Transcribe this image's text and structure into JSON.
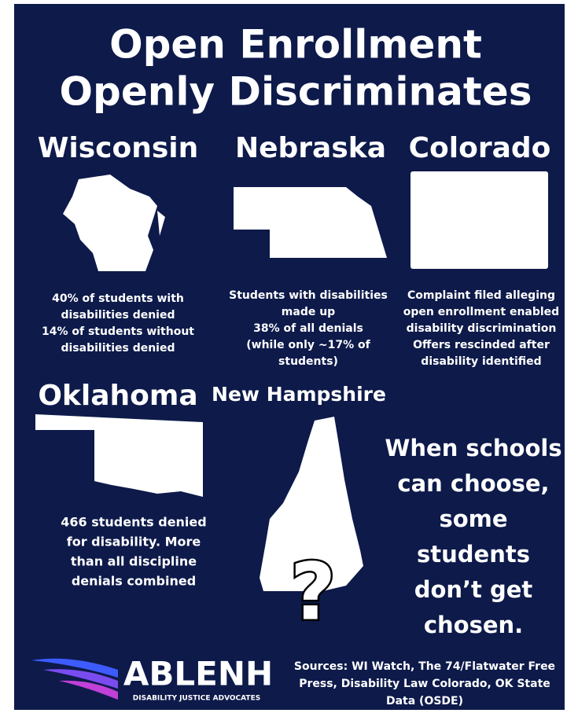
{
  "title": [
    "Open Enrollment",
    "Openly Discriminates"
  ],
  "states": [
    {
      "name": "Wisconsin",
      "text": [
        "40% of students with",
        "disabilities denied",
        "14% of students without",
        "disabilities denied"
      ]
    },
    {
      "name": "Nebraska",
      "text": [
        "Students with disabilities",
        "made up",
        "38% of all denials",
        "(while only ~17% of",
        "students)"
      ]
    },
    {
      "name": "Colorado",
      "text": [
        "Complaint filed alleging",
        "open enrollment enabled",
        "disability discrimination",
        "Offers rescinded after",
        "disability identified"
      ]
    },
    {
      "name": "Oklahoma",
      "text": [
        "466 students denied",
        "for disability. More",
        "than all discipline",
        "denials combined"
      ]
    },
    {
      "name": "New Hampshire",
      "text": []
    }
  ],
  "question": "?",
  "tagline": [
    "When schools",
    "can choose,",
    "some",
    "students",
    "don’t get",
    "chosen."
  ],
  "logo": {
    "name": "ABLENH",
    "subtitle": "DISABILITY JUSTICE ADVOCATES"
  },
  "sources": [
    "Sources: WI Watch, The 74/Flatwater Free",
    "Press, Disability Law Colorado, OK State",
    "Data (OSDE)"
  ]
}
